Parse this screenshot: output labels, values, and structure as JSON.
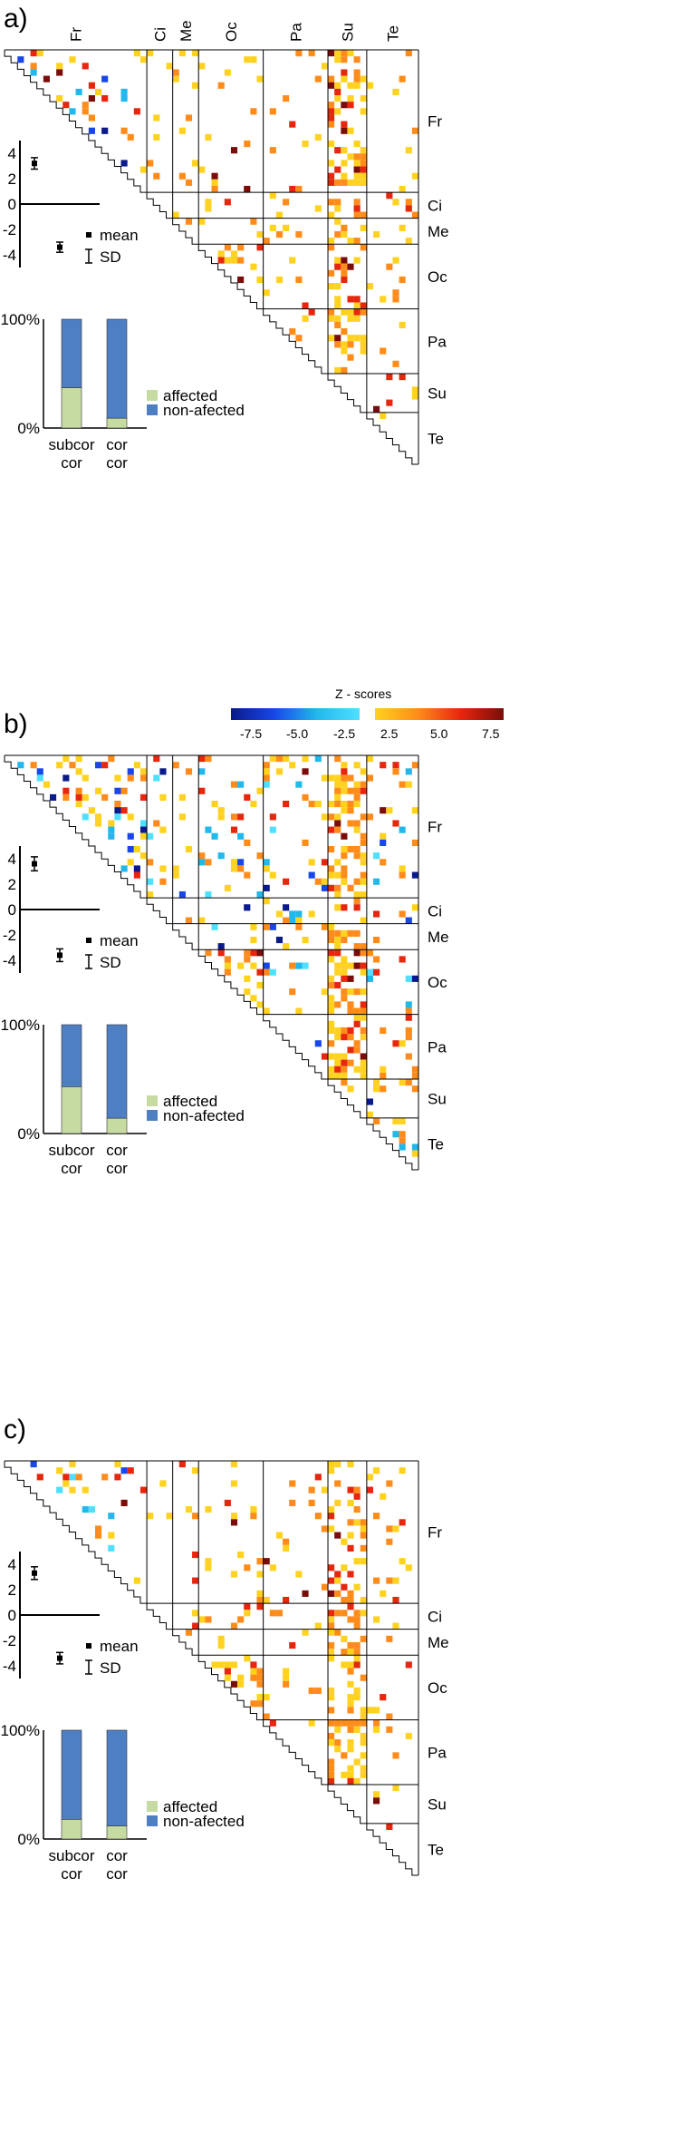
{
  "chart_data": {
    "type": "heatmap",
    "region_labels": [
      "Fr",
      "Ci",
      "Me",
      "Oc",
      "Pa",
      "Su",
      "Te"
    ],
    "colorbar": {
      "title": "Z - scores",
      "negative_ticks": [
        "-7.5",
        "-5.0",
        "-2.5"
      ],
      "positive_ticks": [
        "2.5",
        "5.0",
        "7.5"
      ],
      "negative_colors": [
        "#0a1a8a",
        "#1846e8",
        "#22b8ec",
        "#4fe0ff"
      ],
      "positive_colors": [
        "#ffd21f",
        "#ff8c1a",
        "#e8260e",
        "#7a0d0a"
      ]
    },
    "legend_labels": {
      "mean": "mean",
      "sd": "SD",
      "affected": "affected",
      "non_affected": "non-afected"
    },
    "bar_colors": {
      "affected": "#c6dba2",
      "non_affected": "#4f7fc3"
    },
    "panels": [
      {
        "label": "a)",
        "show_top_labels": true,
        "show_colorbar": false,
        "mean_plot": {
          "ylim": [
            -5,
            5
          ],
          "ticks": [
            "4",
            "2",
            "0",
            "-2",
            "-4"
          ],
          "pos_mean": 3.2,
          "pos_sd": 0.45,
          "neg_mean": -3.4,
          "neg_sd": 0.4
        },
        "bar_chart": {
          "yticks": [
            "100%",
            "0%"
          ],
          "categories": [
            "subcor\ncor",
            "cor\ncor"
          ],
          "cat_line1": [
            "subcor",
            "cor"
          ],
          "cat_line2": [
            "cor",
            "cor"
          ],
          "affected_pct": [
            37,
            9
          ]
        },
        "matrix": {
          "seed": 11,
          "blocks": [
            [
              "Su",
              0.45,
              "pos"
            ],
            [
              "Su_Pa",
              0.55,
              "pos"
            ],
            [
              "Oc_Oc",
              0.3,
              "pos"
            ],
            [
              "Fr",
              0.12,
              "mix"
            ],
            [
              "other",
              0.07,
              "pos"
            ]
          ]
        }
      },
      {
        "label": "b)",
        "show_top_labels": false,
        "show_colorbar": true,
        "mean_plot": {
          "ylim": [
            -5,
            5
          ],
          "ticks": [
            "4",
            "2",
            "0",
            "-2",
            "-4"
          ],
          "pos_mean": 3.6,
          "pos_sd": 0.55,
          "neg_mean": -3.6,
          "neg_sd": 0.5
        },
        "bar_chart": {
          "yticks": [
            "100%",
            "0%"
          ],
          "categories": [
            "subcor\ncor",
            "cor\ncor"
          ],
          "cat_line1": [
            "subcor",
            "cor"
          ],
          "cat_line2": [
            "cor",
            "cor"
          ],
          "affected_pct": [
            43,
            14
          ]
        },
        "matrix": {
          "seed": 23,
          "blocks": [
            [
              "Su",
              0.5,
              "pos"
            ],
            [
              "Su_Pa",
              0.55,
              "pos"
            ],
            [
              "Oc_Oc",
              0.45,
              "pos"
            ],
            [
              "Fr",
              0.22,
              "mix"
            ],
            [
              "other",
              0.12,
              "mix"
            ]
          ]
        }
      },
      {
        "label": "c)",
        "show_top_labels": false,
        "show_colorbar": false,
        "mean_plot": {
          "ylim": [
            -5,
            5
          ],
          "ticks": [
            "4",
            "2",
            "0",
            "-2",
            "-4"
          ],
          "pos_mean": 3.3,
          "pos_sd": 0.5,
          "neg_mean": -3.4,
          "neg_sd": 0.45
        },
        "bar_chart": {
          "yticks": [
            "100%",
            "0%"
          ],
          "categories": [
            "subcor\ncor",
            "cor\ncor"
          ],
          "cat_line1": [
            "subcor",
            "cor"
          ],
          "cat_line2": [
            "cor",
            "cor"
          ],
          "affected_pct": [
            18,
            12
          ]
        },
        "matrix": {
          "seed": 37,
          "blocks": [
            [
              "Su",
              0.4,
              "pos"
            ],
            [
              "Su_Pa",
              0.5,
              "pos"
            ],
            [
              "Oc_Oc",
              0.35,
              "pos"
            ],
            [
              "Fr",
              0.14,
              "mix"
            ],
            [
              "other",
              0.07,
              "pos"
            ]
          ]
        }
      }
    ]
  }
}
